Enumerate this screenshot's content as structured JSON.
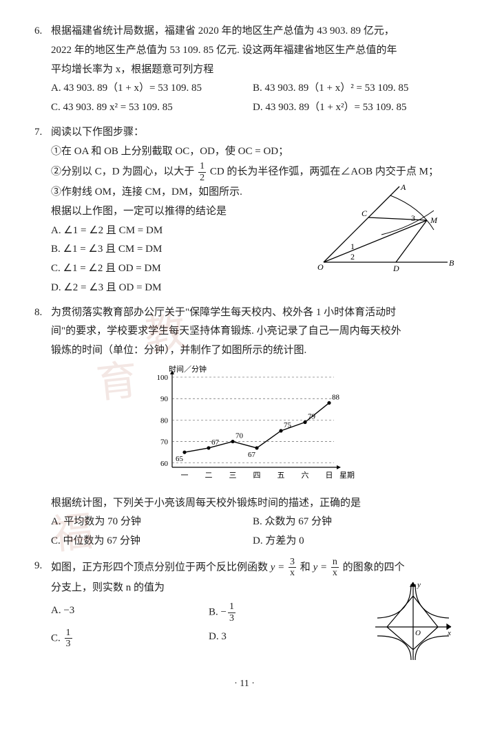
{
  "q6": {
    "num": "6.",
    "l1": "根据福建省统计局数据，福建省 2020 年的地区生产总值为 43 903. 89 亿元，",
    "l2": "2022 年的地区生产总值为 53 109. 85 亿元. 设这两年福建省地区生产总值的年",
    "l3": "平均增长率为 x，根据题意可列方程",
    "optA": "A. 43 903. 89（1 + x）= 53 109. 85",
    "optB": "B. 43 903. 89（1 + x）² = 53 109. 85",
    "optC": "C. 43 903. 89 x² = 53 109. 85",
    "optD": "D. 43 903. 89（1 + x²）= 53 109. 85"
  },
  "q7": {
    "num": "7.",
    "l1": "阅读以下作图步骤：",
    "step1": "①在 OA 和 OB 上分别截取 OC，OD，使 OC = OD；",
    "step2a": "②分别以 C，D 为圆心，以大于",
    "step2b": "CD 的长为半径作弧，两弧在∠AOB 内交于点 M；",
    "step3": "③作射线 OM，连接 CM，DM，如图所示.",
    "l2": "根据以上作图，一定可以推得的结论是",
    "optA": "A. ∠1 = ∠2 且 CM = DM",
    "optB": "B. ∠1 = ∠3 且 CM = DM",
    "optC": "C. ∠1 = ∠2 且 OD = DM",
    "optD": "D. ∠2 = ∠3 且 OD = DM",
    "frac_top": "1",
    "frac_bot": "2",
    "figLabels": {
      "O": "O",
      "A": "A",
      "B": "B",
      "C": "C",
      "D": "D",
      "M": "M",
      "a1": "1",
      "a2": "2",
      "a3": "3"
    }
  },
  "q8": {
    "num": "8.",
    "l1": "为贯彻落实教育部办公厅关于\"保障学生每天校内、校外各 1 小时体育活动时",
    "l2": "间\"的要求，学校要求学生每天坚持体育锻炼. 小亮记录了自己一周内每天校外",
    "l3": "锻炼的时间（单位：分钟），并制作了如图所示的统计图.",
    "l4": "根据统计图，下列关于小亮该周每天校外锻炼时间的描述，正确的是",
    "optA": "A. 平均数为 70 分钟",
    "optB": "B. 众数为 67 分钟",
    "optC": "C. 中位数为 67 分钟",
    "optD": "D. 方差为 0",
    "chart": {
      "type": "line",
      "y_label": "时间／分钟",
      "x_label": "星期",
      "categories": [
        "一",
        "二",
        "三",
        "四",
        "五",
        "六",
        "日"
      ],
      "values": [
        65,
        67,
        70,
        67,
        75,
        79,
        88
      ],
      "point_labels": [
        "65",
        "67",
        "70",
        "67",
        "75",
        "79",
        "88"
      ],
      "ylim": [
        58,
        100
      ],
      "yticks": [
        60,
        70,
        80,
        90,
        100
      ],
      "line_color": "#000000",
      "marker_color": "#000000",
      "grid_color": "#444444",
      "axis_color": "#000000",
      "background_color": "#ffffff",
      "font_size": 11
    }
  },
  "q9": {
    "num": "9.",
    "l1a": "如图，正方形四个顶点分别位于两个反比例函数 ",
    "l1b": " 和 ",
    "l1c": " 的图象的四个",
    "l2": "分支上，则实数 n 的值为",
    "f1_top": "3",
    "f1_bot": "x",
    "f2_top": "n",
    "f2_bot": "x",
    "yeq": "y = ",
    "optA": "A. −3",
    "optBprefix": "B. −",
    "optCprefix": "C. ",
    "optD": "D. 3",
    "frac13_top": "1",
    "frac13_bot": "3",
    "figLabels": {
      "O": "O",
      "x": "x",
      "y": "y"
    }
  },
  "pageNum": "· 11 ·"
}
